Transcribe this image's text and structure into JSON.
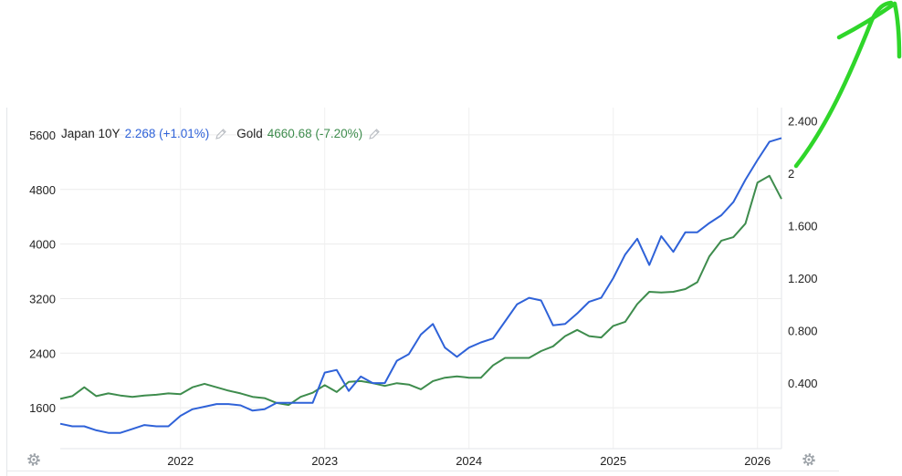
{
  "legend": {
    "series1_name": "Japan 10Y",
    "series1_value": "2.268 (+1.01%)",
    "series2_name": "Gold",
    "series2_value": "4660.68 (-7.20%)"
  },
  "icons": {
    "edit": "pencil-icon",
    "settings": "gear-icon"
  },
  "colors": {
    "japan_10y": "#2f62d8",
    "gold": "#3e8c4d",
    "annotation_arrow": "#2fd62a",
    "grid": "#ececec"
  },
  "chart_data": {
    "type": "line",
    "x_tick_labels": [
      "2022",
      "2023",
      "2024",
      "2025",
      "2026"
    ],
    "xlim": [
      "2021-03",
      "2026-03"
    ],
    "left_axis": {
      "ticks": [
        "5600",
        "4800",
        "4000",
        "3200",
        "2400",
        "1600"
      ],
      "ylim": [
        1000,
        6000
      ]
    },
    "right_axis": {
      "ticks": [
        "2.400",
        "2",
        "1.600",
        "1.200",
        "0.800",
        "0.400"
      ],
      "ylim": [
        -0.1,
        2.5
      ]
    },
    "series": [
      {
        "name": "Japan 10Y",
        "axis": "right",
        "x": [
          "2021-03",
          "2021-04",
          "2021-05",
          "2021-06",
          "2021-07",
          "2021-08",
          "2021-09",
          "2021-10",
          "2021-11",
          "2021-12",
          "2022-01",
          "2022-02",
          "2022-03",
          "2022-04",
          "2022-05",
          "2022-06",
          "2022-07",
          "2022-08",
          "2022-09",
          "2022-10",
          "2022-11",
          "2022-12",
          "2023-01",
          "2023-02",
          "2023-03",
          "2023-04",
          "2023-05",
          "2023-06",
          "2023-07",
          "2023-08",
          "2023-09",
          "2023-10",
          "2023-11",
          "2023-12",
          "2024-01",
          "2024-02",
          "2024-03",
          "2024-04",
          "2024-05",
          "2024-06",
          "2024-07",
          "2024-08",
          "2024-09",
          "2024-10",
          "2024-11",
          "2024-12",
          "2025-01",
          "2025-02",
          "2025-03",
          "2025-04",
          "2025-05",
          "2025-06",
          "2025-07",
          "2025-08",
          "2025-09",
          "2025-10",
          "2025-11",
          "2025-12",
          "2026-01",
          "2026-02",
          "2026-03"
        ],
        "values": [
          0.09,
          0.07,
          0.07,
          0.04,
          0.02,
          0.02,
          0.05,
          0.08,
          0.07,
          0.07,
          0.15,
          0.2,
          0.22,
          0.24,
          0.24,
          0.23,
          0.19,
          0.2,
          0.25,
          0.25,
          0.25,
          0.25,
          0.48,
          0.5,
          0.34,
          0.45,
          0.4,
          0.4,
          0.57,
          0.62,
          0.77,
          0.85,
          0.67,
          0.6,
          0.67,
          0.71,
          0.74,
          0.87,
          1.0,
          1.05,
          1.03,
          0.84,
          0.85,
          0.93,
          1.02,
          1.05,
          1.2,
          1.38,
          1.5,
          1.3,
          1.52,
          1.4,
          1.55,
          1.55,
          1.62,
          1.68,
          1.78,
          1.95,
          2.1,
          2.24,
          2.268
        ]
      },
      {
        "name": "Gold",
        "axis": "left",
        "x": [
          "2021-03",
          "2021-04",
          "2021-05",
          "2021-06",
          "2021-07",
          "2021-08",
          "2021-09",
          "2021-10",
          "2021-11",
          "2021-12",
          "2022-01",
          "2022-02",
          "2022-03",
          "2022-04",
          "2022-05",
          "2022-06",
          "2022-07",
          "2022-08",
          "2022-09",
          "2022-10",
          "2022-11",
          "2022-12",
          "2023-01",
          "2023-02",
          "2023-03",
          "2023-04",
          "2023-05",
          "2023-06",
          "2023-07",
          "2023-08",
          "2023-09",
          "2023-10",
          "2023-11",
          "2023-12",
          "2024-01",
          "2024-02",
          "2024-03",
          "2024-04",
          "2024-05",
          "2024-06",
          "2024-07",
          "2024-08",
          "2024-09",
          "2024-10",
          "2024-11",
          "2024-12",
          "2025-01",
          "2025-02",
          "2025-03",
          "2025-04",
          "2025-05",
          "2025-06",
          "2025-07",
          "2025-08",
          "2025-09",
          "2025-10",
          "2025-11",
          "2025-12",
          "2026-01",
          "2026-02",
          "2026-03"
        ],
        "values": [
          1730,
          1770,
          1900,
          1770,
          1810,
          1780,
          1760,
          1780,
          1790,
          1810,
          1800,
          1900,
          1950,
          1900,
          1850,
          1810,
          1760,
          1740,
          1670,
          1640,
          1760,
          1820,
          1930,
          1830,
          1980,
          1990,
          1960,
          1920,
          1960,
          1940,
          1870,
          1990,
          2040,
          2060,
          2040,
          2040,
          2220,
          2330,
          2330,
          2330,
          2430,
          2500,
          2650,
          2740,
          2650,
          2630,
          2800,
          2860,
          3120,
          3300,
          3290,
          3300,
          3340,
          3440,
          3820,
          4050,
          4100,
          4300,
          4900,
          5000,
          4660.68
        ]
      }
    ]
  },
  "annotation": {
    "type": "arrow",
    "direction": "up-right"
  }
}
